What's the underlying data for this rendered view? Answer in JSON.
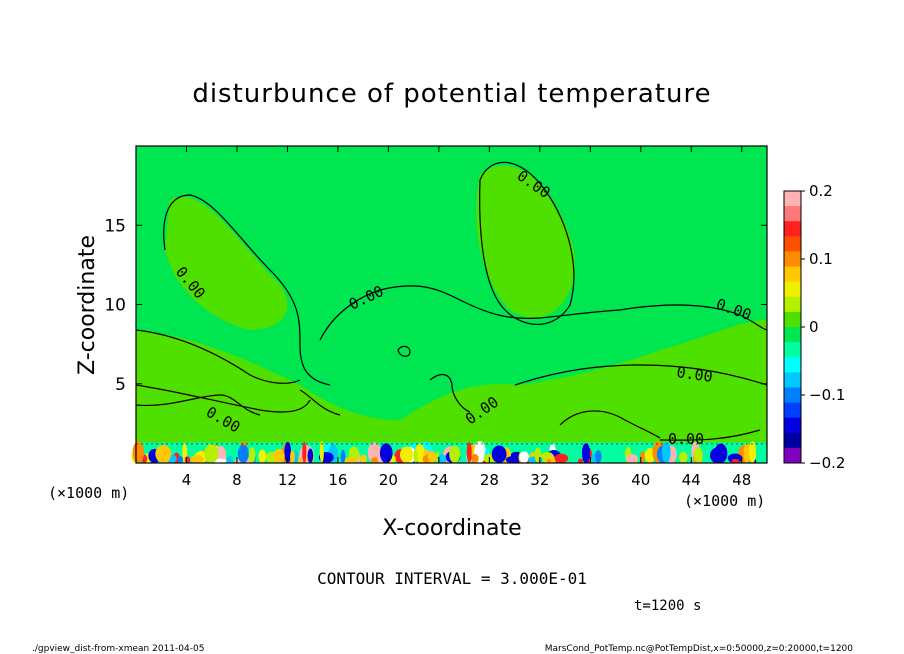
{
  "chart_data": {
    "type": "heatmap",
    "title": "disturbunce of potential temperature",
    "xlabel": "X-coordinate",
    "ylabel": "Z-coordinate",
    "x_unit_left": "(×1000 m)",
    "x_unit_right": "(×1000 m)",
    "xlim": [
      0,
      50
    ],
    "ylim": [
      0,
      20
    ],
    "x_ticks": [
      4,
      8,
      12,
      16,
      20,
      24,
      28,
      32,
      36,
      40,
      44,
      48
    ],
    "y_ticks": [
      5,
      10,
      15
    ],
    "colorbar": {
      "vmin": -0.2,
      "vmax": 0.2,
      "tick_values": [
        0.2,
        0.1,
        0,
        -0.1,
        -0.2
      ],
      "tick_labels": [
        "0.2",
        "0.1",
        "0",
        "−0.1",
        "−0.2"
      ],
      "colors": [
        "#ffb4b4",
        "#ff7878",
        "#ff2020",
        "#ff5000",
        "#ff8c00",
        "#ffc800",
        "#f0f000",
        "#b4f000",
        "#50e000",
        "#00e650",
        "#00ffa0",
        "#00ffff",
        "#00c8ff",
        "#0080ff",
        "#0040ff",
        "#0000e0",
        "#0000a0",
        "#8000c0"
      ]
    },
    "contour_labels": [
      "0.00",
      "0.00",
      "0.00",
      "0.00",
      "0.00",
      "0.00",
      "0.00",
      "0.00"
    ],
    "dominant_value_range": [
      -0.02,
      0.02
    ],
    "annotation": "CONTOUR INTERVAL = 3.000E-01",
    "time_label": "t=1200 s",
    "footer_left": "./gpview_dist-from-xmean 2011-04-05",
    "footer_right": "MarsCond_PotTemp.nc@PotTempDist,x=0:50000,z=0:20000,t=1200",
    "grid": false
  }
}
